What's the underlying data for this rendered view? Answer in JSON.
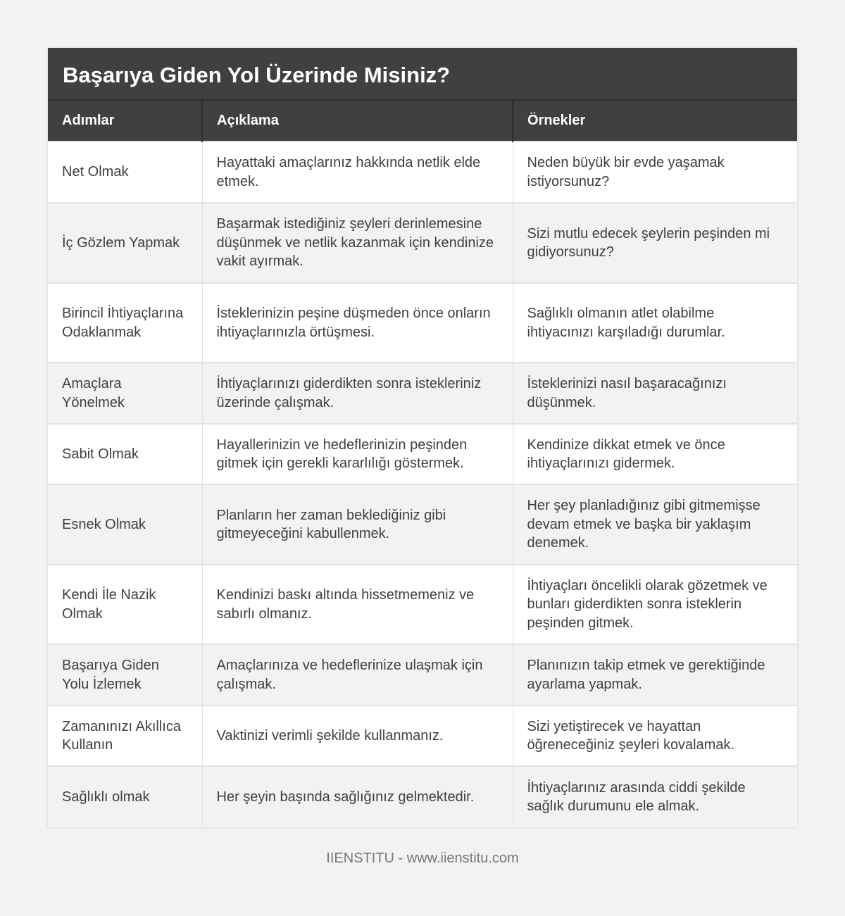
{
  "title": "Başarıya Giden Yol Üzerinde Misiniz?",
  "columns": [
    "Adımlar",
    "Açıklama",
    "Örnekler"
  ],
  "rows": [
    [
      "Net Olmak",
      "Hayattaki amaçlarınız hakkında netlik elde etmek.",
      "Neden büyük bir evde yaşamak istiyorsunuz?"
    ],
    [
      "İç Gözlem Yapmak",
      "Başarmak istediğiniz şeyleri derinlemesine düşünmek ve netlik kazanmak için kendinize vakit ayırmak.",
      "Sizi mutlu edecek şeylerin peşinden mi gidiyorsunuz?"
    ],
    [
      "Birincil İhtiyaçlarına Odaklanmak",
      "İsteklerinizin peşine düşmeden önce onların ihtiyaçlarınızla örtüşmesi.",
      "Sağlıklı olmanın atlet olabilme ihtiyacınızı karşıladığı durumlar."
    ],
    [
      "Amaçlara Yönelmek",
      "İhtiyaçlarınızı giderdikten sonra istekleriniz üzerinde çalışmak.",
      "İsteklerinizi nasıl başaracağınızı düşünmek."
    ],
    [
      "Sabit Olmak",
      "Hayallerinizin ve hedeflerinizin peşinden gitmek için gerekli kararlılığı göstermek.",
      "Kendinize dikkat etmek ve önce ihtiyaçlarınızı gidermek."
    ],
    [
      "Esnek Olmak",
      "Planların her zaman beklediğiniz gibi gitmeyeceğini kabullenmek.",
      "Her şey planladığınız gibi gitmemişse devam etmek ve başka bir yaklaşım denemek."
    ],
    [
      "Kendi İle Nazik Olmak",
      "Kendinizi baskı altında hissetmemeniz ve sabırlı olmanız.",
      "İhtiyaçları öncelikli olarak gözetmek ve bunları giderdikten sonra isteklerin peşinden gitmek."
    ],
    [
      "Başarıya Giden Yolu İzlemek",
      "Amaçlarınıza ve hedeflerinize ulaşmak için çalışmak.",
      "Planınızın takip etmek ve gerektiğinde ayarlama yapmak."
    ],
    [
      "Zamanınızı Akıllıca Kullanın",
      "Vaktinizi verimli şekilde kullanmanız.",
      "Sizi yetiştirecek ve hayattan öğreneceğiniz şeyleri kovalamak."
    ],
    [
      "Sağlıklı olmak",
      "Her şeyin başında sağlığınız gelmektedir.",
      "İhtiyaçlarınız arasında ciddi şekilde sağlık durumunu ele almak."
    ]
  ],
  "footer": "IIENSTITU - www.iienstitu.com"
}
